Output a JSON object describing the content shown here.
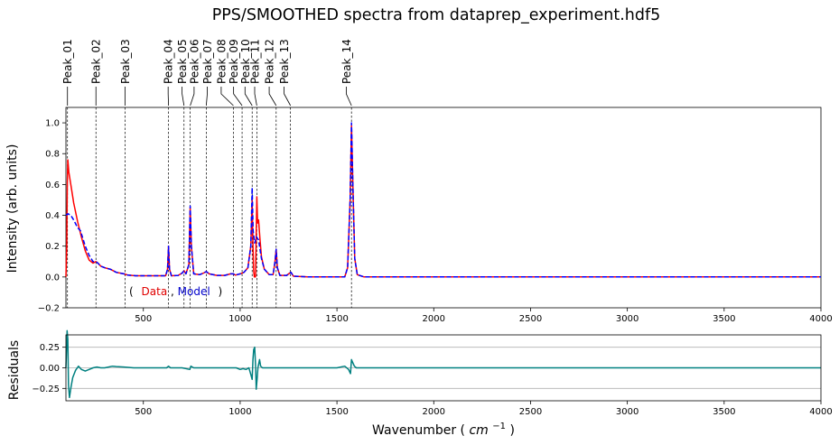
{
  "chart_data": [
    {
      "type": "line",
      "title": "PPS/SMOOTHED spectra from dataprep_experiment.hdf5",
      "ylabel": "Intensity (arb. units)",
      "xlim": [
        100,
        4000
      ],
      "ylim": [
        -0.2,
        1.1
      ],
      "xticks": [
        500,
        1000,
        1500,
        2000,
        2500,
        3000,
        3500,
        4000
      ],
      "yticks": [
        -0.2,
        0.0,
        0.2,
        0.4,
        0.6,
        0.8,
        1.0
      ],
      "ytick_labels": [
        "−0.2",
        "0.0",
        "0.2",
        "0.4",
        "0.6",
        "0.8",
        "1.0"
      ],
      "legend": {
        "open": "(",
        "close": ")",
        "sep": ",",
        "entries": [
          {
            "name": "Data",
            "color": "#ff0000"
          },
          {
            "name": "Model",
            "color": "#0000ff"
          }
        ]
      },
      "series": [
        {
          "name": "Data",
          "color": "#ff0000",
          "style": "solid",
          "points": [
            [
              100,
              0.0
            ],
            [
              104,
              0.2
            ],
            [
              107,
              0.6
            ],
            [
              110,
              0.76
            ],
            [
              115,
              0.68
            ],
            [
              125,
              0.6
            ],
            [
              140,
              0.48
            ],
            [
              160,
              0.36
            ],
            [
              180,
              0.26
            ],
            [
              200,
              0.17
            ],
            [
              220,
              0.11
            ],
            [
              240,
              0.09
            ],
            [
              255,
              0.1
            ],
            [
              265,
              0.09
            ],
            [
              280,
              0.07
            ],
            [
              300,
              0.06
            ],
            [
              330,
              0.05
            ],
            [
              360,
              0.03
            ],
            [
              400,
              0.02
            ],
            [
              420,
              0.012
            ],
            [
              460,
              0.008
            ],
            [
              520,
              0.008
            ],
            [
              580,
              0.008
            ],
            [
              615,
              0.008
            ],
            [
              625,
              0.05
            ],
            [
              630,
              0.2
            ],
            [
              635,
              0.05
            ],
            [
              645,
              0.008
            ],
            [
              680,
              0.01
            ],
            [
              700,
              0.025
            ],
            [
              710,
              0.04
            ],
            [
              720,
              0.02
            ],
            [
              735,
              0.08
            ],
            [
              742,
              0.45
            ],
            [
              748,
              0.2
            ],
            [
              760,
              0.02
            ],
            [
              790,
              0.015
            ],
            [
              810,
              0.025
            ],
            [
              825,
              0.035
            ],
            [
              840,
              0.02
            ],
            [
              880,
              0.01
            ],
            [
              920,
              0.01
            ],
            [
              950,
              0.02
            ],
            [
              965,
              0.02
            ],
            [
              975,
              0.012
            ],
            [
              1000,
              0.02
            ],
            [
              1020,
              0.03
            ],
            [
              1040,
              0.06
            ],
            [
              1055,
              0.2
            ],
            [
              1062,
              0.5
            ],
            [
              1066,
              0.2
            ],
            [
              1070,
              0.04
            ],
            [
              1073,
              0.0
            ],
            [
              1079,
              0.0
            ],
            [
              1082,
              0.2
            ],
            [
              1086,
              0.52
            ],
            [
              1090,
              0.35
            ],
            [
              1095,
              0.37
            ],
            [
              1102,
              0.25
            ],
            [
              1110,
              0.13
            ],
            [
              1125,
              0.05
            ],
            [
              1150,
              0.015
            ],
            [
              1170,
              0.015
            ],
            [
              1180,
              0.1
            ],
            [
              1186,
              0.18
            ],
            [
              1192,
              0.06
            ],
            [
              1205,
              0.01
            ],
            [
              1240,
              0.01
            ],
            [
              1255,
              0.025
            ],
            [
              1262,
              0.03
            ],
            [
              1275,
              0.005
            ],
            [
              1350,
              0.0
            ],
            [
              1500,
              0.0
            ],
            [
              1540,
              0.0
            ],
            [
              1555,
              0.06
            ],
            [
              1568,
              0.5
            ],
            [
              1575,
              0.98
            ],
            [
              1582,
              0.6
            ],
            [
              1592,
              0.12
            ],
            [
              1605,
              0.015
            ],
            [
              1640,
              0.0
            ],
            [
              2000,
              0.0
            ],
            [
              3000,
              0.0
            ],
            [
              4000,
              0.0
            ]
          ]
        },
        {
          "name": "Model",
          "color": "#0000ff",
          "style": "dashed",
          "points": [
            [
              100,
              0.4
            ],
            [
              110,
              0.41
            ],
            [
              125,
              0.4
            ],
            [
              140,
              0.37
            ],
            [
              160,
              0.32
            ],
            [
              175,
              0.3
            ],
            [
              185,
              0.26
            ],
            [
              200,
              0.2
            ],
            [
              220,
              0.14
            ],
            [
              240,
              0.1
            ],
            [
              255,
              0.1
            ],
            [
              265,
              0.09
            ],
            [
              280,
              0.07
            ],
            [
              300,
              0.06
            ],
            [
              330,
              0.05
            ],
            [
              360,
              0.03
            ],
            [
              400,
              0.02
            ],
            [
              420,
              0.012
            ],
            [
              460,
              0.008
            ],
            [
              520,
              0.008
            ],
            [
              580,
              0.008
            ],
            [
              615,
              0.008
            ],
            [
              625,
              0.05
            ],
            [
              630,
              0.2
            ],
            [
              635,
              0.05
            ],
            [
              645,
              0.008
            ],
            [
              680,
              0.01
            ],
            [
              700,
              0.025
            ],
            [
              710,
              0.04
            ],
            [
              720,
              0.02
            ],
            [
              735,
              0.08
            ],
            [
              742,
              0.46
            ],
            [
              748,
              0.2
            ],
            [
              760,
              0.02
            ],
            [
              790,
              0.015
            ],
            [
              810,
              0.025
            ],
            [
              825,
              0.035
            ],
            [
              840,
              0.02
            ],
            [
              880,
              0.01
            ],
            [
              920,
              0.01
            ],
            [
              950,
              0.02
            ],
            [
              965,
              0.02
            ],
            [
              975,
              0.012
            ],
            [
              1000,
              0.02
            ],
            [
              1020,
              0.03
            ],
            [
              1040,
              0.06
            ],
            [
              1055,
              0.2
            ],
            [
              1062,
              0.58
            ],
            [
              1067,
              0.3
            ],
            [
              1075,
              0.22
            ],
            [
              1085,
              0.26
            ],
            [
              1095,
              0.24
            ],
            [
              1110,
              0.12
            ],
            [
              1125,
              0.05
            ],
            [
              1150,
              0.015
            ],
            [
              1170,
              0.015
            ],
            [
              1180,
              0.1
            ],
            [
              1186,
              0.18
            ],
            [
              1192,
              0.06
            ],
            [
              1205,
              0.01
            ],
            [
              1240,
              0.01
            ],
            [
              1255,
              0.025
            ],
            [
              1262,
              0.03
            ],
            [
              1275,
              0.005
            ],
            [
              1350,
              0.0
            ],
            [
              1500,
              0.0
            ],
            [
              1540,
              0.0
            ],
            [
              1555,
              0.06
            ],
            [
              1568,
              0.5
            ],
            [
              1575,
              1.0
            ],
            [
              1582,
              0.6
            ],
            [
              1592,
              0.12
            ],
            [
              1605,
              0.015
            ],
            [
              1640,
              0.0
            ],
            [
              2000,
              0.0
            ],
            [
              3000,
              0.0
            ],
            [
              4000,
              0.0
            ]
          ]
        }
      ],
      "peaks": [
        {
          "label": "Peak_01",
          "x": 108,
          "label_x": 108
        },
        {
          "label": "Peak_02",
          "x": 255,
          "label_x": 255
        },
        {
          "label": "Peak_03",
          "x": 405,
          "label_x": 405
        },
        {
          "label": "Peak_04",
          "x": 630,
          "label_x": 628
        },
        {
          "label": "Peak_05",
          "x": 710,
          "label_x": 700
        },
        {
          "label": "Peak_06",
          "x": 742,
          "label_x": 762
        },
        {
          "label": "Peak_07",
          "x": 825,
          "label_x": 830
        },
        {
          "label": "Peak_08",
          "x": 965,
          "label_x": 902
        },
        {
          "label": "Peak_09",
          "x": 1010,
          "label_x": 966
        },
        {
          "label": "Peak_10",
          "x": 1062,
          "label_x": 1025
        },
        {
          "label": "Peak_11",
          "x": 1086,
          "label_x": 1075
        },
        {
          "label": "Peak_12",
          "x": 1186,
          "label_x": 1150
        },
        {
          "label": "Peak_13",
          "x": 1260,
          "label_x": 1227
        },
        {
          "label": "Peak_14",
          "x": 1575,
          "label_x": 1548
        }
      ]
    },
    {
      "type": "line",
      "ylabel": "Residuals",
      "xlabel_text": "Wavenumber (",
      "xlabel_unit": "cm",
      "xlabel_sup": "−1",
      "xlabel_close": ")",
      "xlim": [
        100,
        4000
      ],
      "ylim": [
        -0.4,
        0.4
      ],
      "xticks": [
        500,
        1000,
        1500,
        2000,
        2500,
        3000,
        3500,
        4000
      ],
      "yticks": [
        -0.25,
        0.0,
        0.25
      ],
      "ytick_labels": [
        "−0.25",
        "0.00",
        "0.25"
      ],
      "grid_y": true,
      "series": [
        {
          "color": "#008080",
          "points": [
            [
              100,
              0.0
            ],
            [
              104,
              0.3
            ],
            [
              106,
              0.45
            ],
            [
              110,
              0.35
            ],
            [
              113,
              -0.2
            ],
            [
              118,
              -0.36
            ],
            [
              125,
              -0.25
            ],
            [
              135,
              -0.12
            ],
            [
              150,
              -0.03
            ],
            [
              165,
              0.02
            ],
            [
              180,
              -0.02
            ],
            [
              200,
              -0.04
            ],
            [
              220,
              -0.02
            ],
            [
              240,
              0.0
            ],
            [
              260,
              0.01
            ],
            [
              280,
              0.0
            ],
            [
              300,
              0.0
            ],
            [
              320,
              0.01
            ],
            [
              340,
              0.02
            ],
            [
              360,
              0.015
            ],
            [
              400,
              0.01
            ],
            [
              450,
              0.0
            ],
            [
              550,
              0.0
            ],
            [
              620,
              0.0
            ],
            [
              630,
              0.02
            ],
            [
              640,
              0.0
            ],
            [
              700,
              0.0
            ],
            [
              740,
              -0.02
            ],
            [
              745,
              0.02
            ],
            [
              760,
              0.0
            ],
            [
              830,
              0.0
            ],
            [
              960,
              0.0
            ],
            [
              980,
              0.0
            ],
            [
              1000,
              -0.02
            ],
            [
              1015,
              -0.01
            ],
            [
              1030,
              -0.02
            ],
            [
              1045,
              0.0
            ],
            [
              1055,
              -0.08
            ],
            [
              1062,
              -0.14
            ],
            [
              1066,
              0.1
            ],
            [
              1070,
              0.22
            ],
            [
              1075,
              0.25
            ],
            [
              1080,
              0.0
            ],
            [
              1083,
              -0.26
            ],
            [
              1087,
              -0.15
            ],
            [
              1092,
              0.0
            ],
            [
              1100,
              0.1
            ],
            [
              1106,
              0.02
            ],
            [
              1115,
              0.0
            ],
            [
              1150,
              0.0
            ],
            [
              1200,
              0.0
            ],
            [
              1500,
              0.0
            ],
            [
              1540,
              0.02
            ],
            [
              1560,
              -0.02
            ],
            [
              1570,
              -0.07
            ],
            [
              1575,
              0.1
            ],
            [
              1580,
              0.07
            ],
            [
              1590,
              0.02
            ],
            [
              1600,
              0.0
            ],
            [
              2000,
              0.0
            ],
            [
              3000,
              0.0
            ],
            [
              4000,
              0.0
            ]
          ]
        }
      ]
    }
  ]
}
